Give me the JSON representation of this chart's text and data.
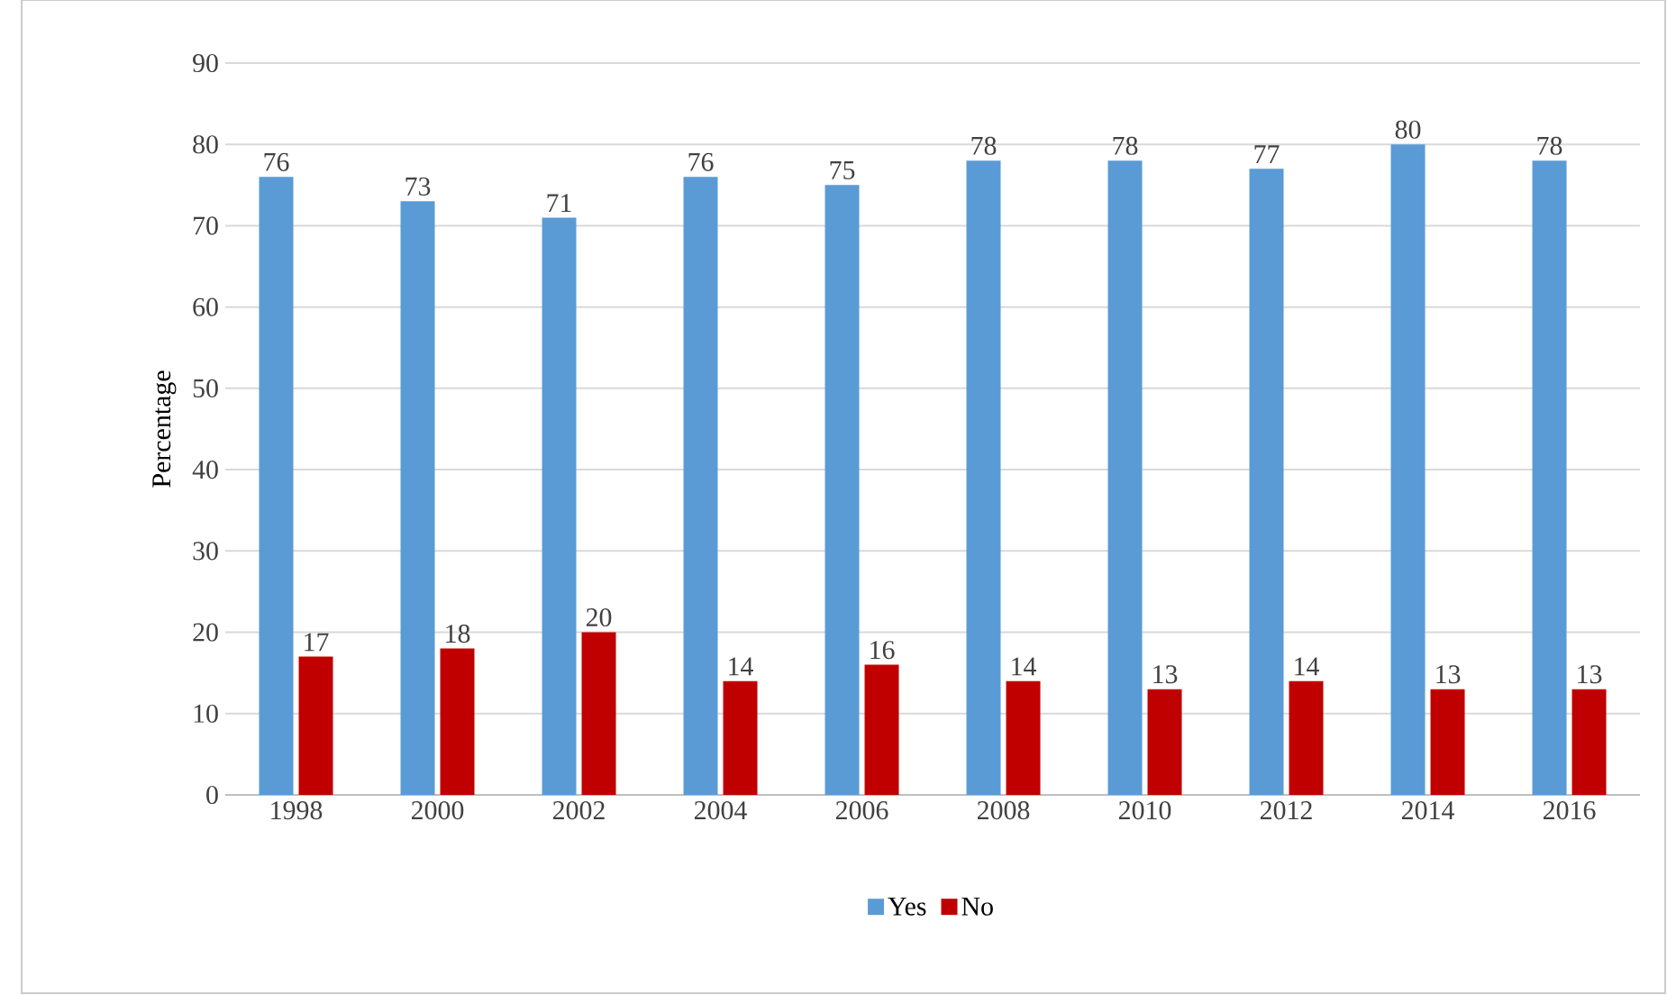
{
  "chart_data": {
    "type": "bar",
    "ylabel": "Percentage",
    "categories": [
      "1998",
      "2000",
      "2002",
      "2004",
      "2006",
      "2008",
      "2010",
      "2012",
      "2014",
      "2016"
    ],
    "series": [
      {
        "name": "Yes",
        "color": "#5b9bd5",
        "values": [
          76,
          73,
          71,
          76,
          75,
          78,
          78,
          77,
          80,
          78
        ]
      },
      {
        "name": "No",
        "color": "#c00000",
        "values": [
          17,
          18,
          20,
          14,
          16,
          14,
          13,
          14,
          13,
          13
        ]
      }
    ],
    "ylim": [
      0,
      90
    ],
    "yticks": [
      0,
      10,
      20,
      30,
      40,
      50,
      60,
      70,
      80,
      90
    ],
    "grid": "y",
    "legend": "bottom",
    "data_labels": true
  }
}
